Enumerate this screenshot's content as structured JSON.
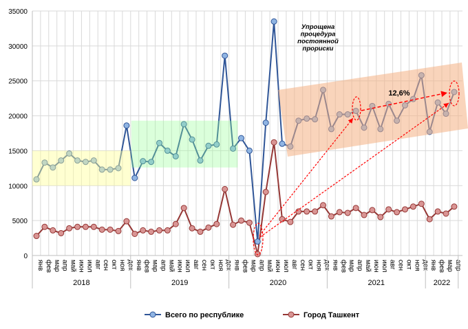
{
  "chart_data": {
    "type": "line",
    "title": "",
    "xlabel": "",
    "ylabel": "",
    "ylim": [
      0,
      35000
    ],
    "yticks": [
      "0",
      "5000",
      "10000",
      "15000",
      "20000",
      "25000",
      "30000",
      "35000"
    ],
    "grid": true,
    "legend_position": "bottom",
    "months": [
      "янв",
      "фев",
      "мар",
      "апр",
      "май",
      "июн",
      "июл",
      "авг",
      "сен",
      "окт",
      "ноя",
      "дек"
    ],
    "years": [
      {
        "label": "2018",
        "months": 12
      },
      {
        "label": "2019",
        "months": 12
      },
      {
        "label": "2020",
        "months": 12
      },
      {
        "label": "2021",
        "months": 12
      },
      {
        "label": "2022",
        "months": 4
      }
    ],
    "series": [
      {
        "name": "Всего по республике",
        "color": "#2f5597",
        "marker": "#8fb4e3",
        "values": [
          10900,
          13300,
          12600,
          13600,
          14600,
          13600,
          13400,
          13600,
          12300,
          12300,
          12500,
          18600,
          11100,
          13500,
          13400,
          16100,
          15000,
          14200,
          18800,
          16600,
          13600,
          15700,
          15900,
          28600,
          15300,
          16800,
          15000,
          2000,
          19000,
          33500,
          16000,
          15600,
          19300,
          19600,
          19500,
          23700,
          18100,
          20200,
          20200,
          20700,
          18300,
          21400,
          18100,
          21700,
          19300,
          21500,
          22400,
          25800,
          17700,
          21900,
          20300,
          23400
        ]
      },
      {
        "name": "Город Ташкент",
        "color": "#953735",
        "marker": "#d99594",
        "values": [
          2800,
          4100,
          3600,
          3200,
          3900,
          4100,
          4100,
          4100,
          3700,
          3700,
          3500,
          4900,
          3100,
          3600,
          3400,
          3600,
          3600,
          4500,
          6800,
          3900,
          3400,
          4000,
          4500,
          9500,
          4400,
          5000,
          4700,
          200,
          9100,
          16200,
          5200,
          4800,
          6300,
          6300,
          6300,
          7200,
          5600,
          6200,
          6100,
          6800,
          5800,
          6500,
          5500,
          6600,
          6200,
          6600,
          7000,
          7400,
          5200,
          6300,
          6000,
          7000
        ]
      }
    ],
    "annotations": {
      "note_lines": [
        "Упрощена",
        "процедура",
        "постоянной",
        "прориски"
      ],
      "growth_label": "12,6%"
    },
    "colors": {
      "band_2018": "#ffff99",
      "band_2019": "#99ff99",
      "band_trend": "#f4b183",
      "arrow": "#ff0000"
    }
  }
}
